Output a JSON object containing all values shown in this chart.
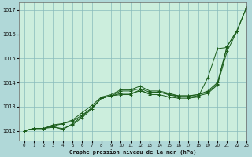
{
  "xlabel": "Graphe pression niveau de la mer (hPa)",
  "background_color": "#b0d8d8",
  "plot_bg_color": "#cceedd",
  "grid_color": "#88bbbb",
  "line_color": "#1a5c1a",
  "xlim": [
    -0.5,
    23
  ],
  "ylim": [
    1011.6,
    1017.3
  ],
  "yticks": [
    1012,
    1013,
    1014,
    1015,
    1016,
    1017
  ],
  "xticks": [
    0,
    1,
    2,
    3,
    4,
    5,
    6,
    7,
    8,
    9,
    10,
    11,
    12,
    13,
    14,
    15,
    16,
    17,
    18,
    19,
    20,
    21,
    22,
    23
  ],
  "series": [
    [
      1012.0,
      1012.1,
      1012.1,
      1012.15,
      1012.1,
      1012.25,
      1012.55,
      1012.9,
      1013.35,
      1013.45,
      1013.55,
      1013.55,
      1013.65,
      1013.55,
      1013.6,
      1013.5,
      1013.4,
      1013.4,
      1013.45,
      1013.55,
      1013.9,
      1015.3,
      1016.1,
      1017.1
    ],
    [
      1012.0,
      1012.1,
      1012.1,
      1012.2,
      1012.3,
      1012.45,
      1012.75,
      1013.05,
      1013.4,
      1013.5,
      1013.7,
      1013.7,
      1013.85,
      1013.65,
      1013.65,
      1013.55,
      1013.45,
      1013.45,
      1013.5,
      1013.6,
      1013.95,
      1015.5,
      1016.15,
      1017.1
    ],
    [
      1012.0,
      1012.1,
      1012.1,
      1012.25,
      1012.3,
      1012.4,
      1012.65,
      1012.95,
      1013.35,
      1013.45,
      1013.65,
      1013.65,
      1013.75,
      1013.6,
      1013.6,
      1013.5,
      1013.45,
      1013.45,
      1013.5,
      1013.65,
      1014.0,
      1015.5,
      1016.1,
      null
    ],
    [
      1012.0,
      1012.1,
      1012.1,
      1012.2,
      1012.05,
      1012.3,
      1012.6,
      1012.95,
      1013.35,
      1013.45,
      1013.5,
      1013.5,
      1013.7,
      1013.5,
      1013.5,
      1013.4,
      1013.35,
      1013.35,
      1013.4,
      1014.2,
      1015.4,
      1015.45,
      null,
      null
    ]
  ]
}
